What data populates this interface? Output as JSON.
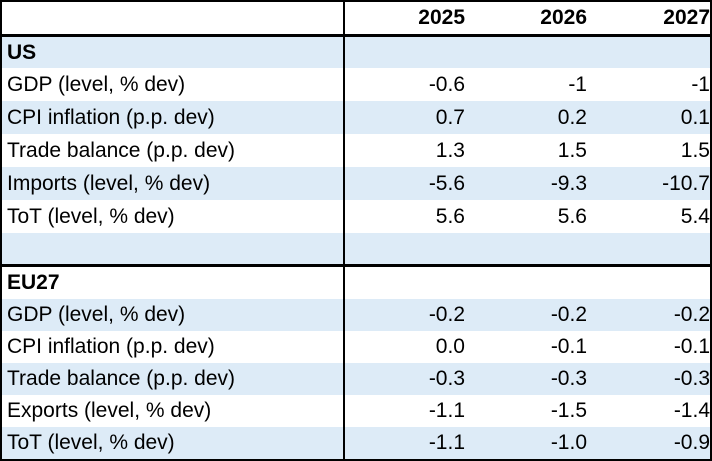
{
  "header": {
    "years": [
      "2025",
      "2026",
      "2027"
    ]
  },
  "sections": [
    {
      "title": "US",
      "rows": [
        {
          "label": "GDP (level, % dev)",
          "values": [
            "-0.6",
            "-1",
            "-1"
          ]
        },
        {
          "label": "CPI inflation (p.p. dev)",
          "values": [
            "0.7",
            "0.2",
            "0.1"
          ]
        },
        {
          "label": "Trade balance (p.p. dev)",
          "values": [
            "1.3",
            "1.5",
            "1.5"
          ]
        },
        {
          "label": "Imports (level, % dev)",
          "values": [
            "-5.6",
            "-9.3",
            "-10.7"
          ]
        },
        {
          "label": "ToT (level, % dev)",
          "values": [
            "5.6",
            "5.6",
            "5.4"
          ]
        }
      ]
    },
    {
      "title": "EU27",
      "rows": [
        {
          "label": "GDP (level, % dev)",
          "values": [
            "-0.2",
            "-0.2",
            "-0.2"
          ]
        },
        {
          "label": "CPI inflation (p.p. dev)",
          "values": [
            "0.0",
            "-0.1",
            "-0.1"
          ]
        },
        {
          "label": "Trade balance (p.p. dev)",
          "values": [
            "-0.3",
            "-0.3",
            "-0.3"
          ]
        },
        {
          "label": "Exports (level, % dev)",
          "values": [
            "-1.1",
            "-1.5",
            "-1.4"
          ]
        },
        {
          "label": "ToT (level, % dev)",
          "values": [
            "-1.1",
            "-1.0",
            "-0.9"
          ]
        }
      ]
    }
  ]
}
